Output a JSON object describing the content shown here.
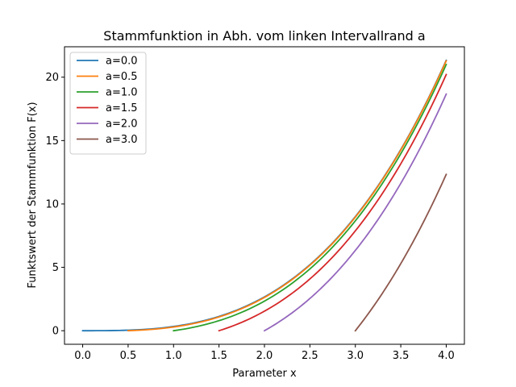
{
  "chart_data": {
    "type": "line",
    "title": "Stammfunktion in Abh. vom linken Intervallrand a",
    "xlabel": "Parameter x",
    "ylabel": "Funktswert der Stammfunktion F(x)",
    "xlim": [
      -0.2,
      4.2
    ],
    "ylim": [
      -1.07,
      22.4
    ],
    "xticks": [
      0.0,
      0.5,
      1.0,
      1.5,
      2.0,
      2.5,
      3.0,
      3.5,
      4.0
    ],
    "xtick_labels": [
      "0.0",
      "0.5",
      "1.0",
      "1.5",
      "2.0",
      "2.5",
      "3.0",
      "3.5",
      "4.0"
    ],
    "yticks": [
      0,
      5,
      10,
      15,
      20
    ],
    "ytick_labels": [
      "0",
      "5",
      "10",
      "15",
      "20"
    ],
    "grid": false,
    "legend_position": "top-left",
    "x_end": 4.0,
    "series": [
      {
        "name": "a=0.0",
        "a": 0.0,
        "color": "#1f77b4"
      },
      {
        "name": "a=0.5",
        "a": 0.5,
        "color": "#ff7f0e"
      },
      {
        "name": "a=1.0",
        "a": 1.0,
        "color": "#2ca02c"
      },
      {
        "name": "a=1.5",
        "a": 1.5,
        "color": "#d62728"
      },
      {
        "name": "a=2.0",
        "a": 2.0,
        "color": "#9467bd"
      },
      {
        "name": "a=3.0",
        "a": 3.0,
        "color": "#8c564b"
      }
    ]
  }
}
